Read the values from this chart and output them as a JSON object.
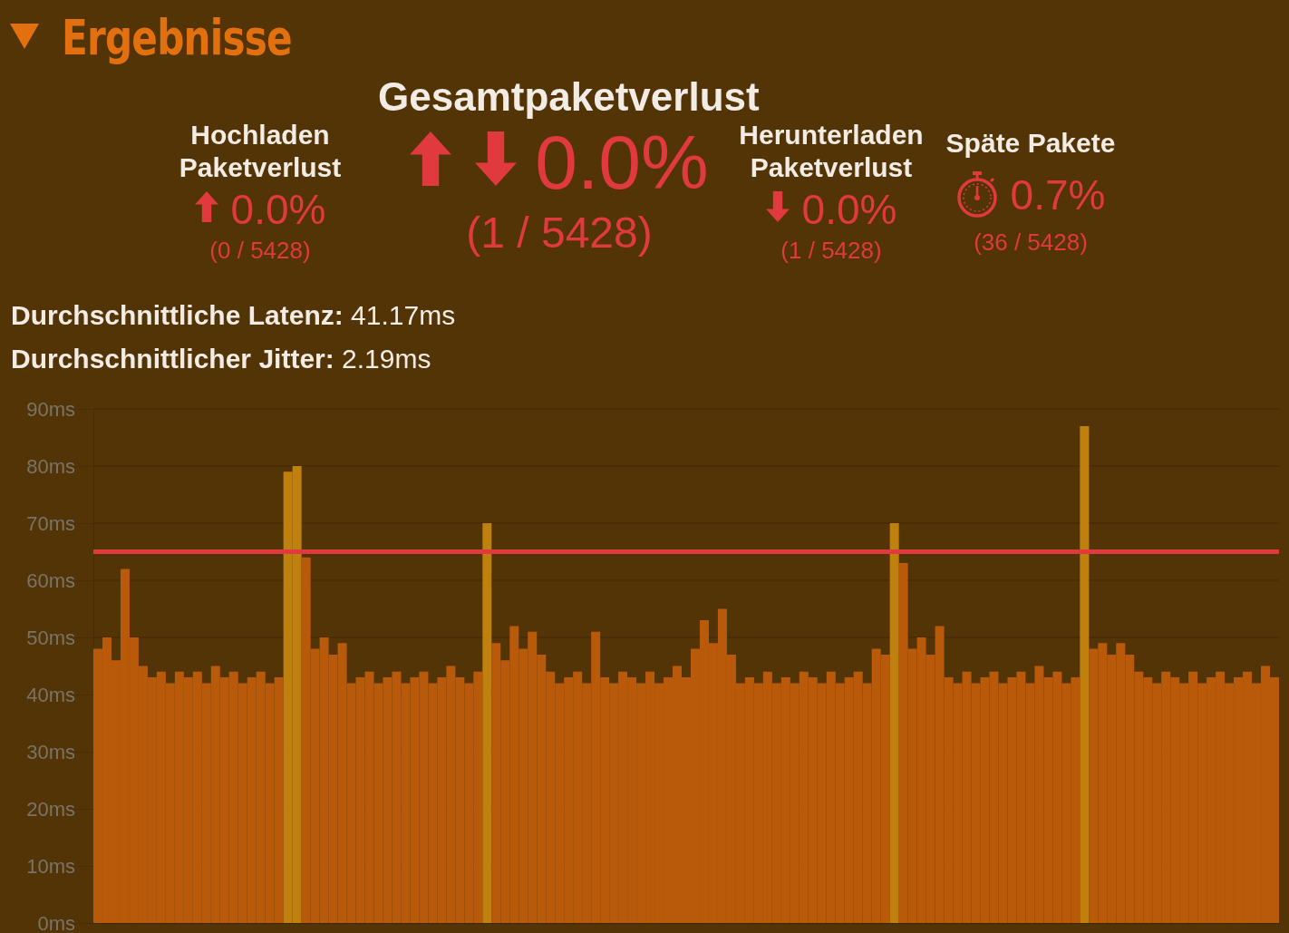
{
  "chart_data": {
    "type": "bar",
    "title": "Ergebnisse",
    "annotations": [
      "Hochladen Paketverlust",
      "0.0%",
      "(0 / 5428)",
      "Gesamtpaketverlust",
      "0.0%",
      "(1 / 5428)",
      "Herunterladen Paketverlust",
      "0.0%",
      "(1 / 5428)",
      "Späte Pakete",
      "0.7%",
      "(36 / 5428)",
      "Durchschnittliche Latenz:",
      "41.17ms",
      "Durchschnittlicher Jitter:",
      "2.19ms"
    ],
    "categories": [
      null,
      null,
      null,
      null,
      null,
      null,
      null,
      null,
      null,
      null,
      null,
      null,
      null,
      null,
      null,
      null,
      null,
      null,
      null,
      null,
      null,
      null,
      null,
      null,
      null,
      null,
      null,
      null,
      null,
      null,
      null,
      null,
      null,
      null,
      null,
      null,
      null,
      null,
      null,
      null,
      null,
      null,
      null,
      null,
      null,
      null,
      null,
      null,
      null,
      null,
      null,
      null,
      null,
      null,
      null,
      null,
      null,
      null,
      null,
      null,
      null,
      null,
      null,
      null,
      null,
      null,
      null,
      null,
      null,
      null,
      null,
      null,
      null,
      null,
      null,
      null,
      null,
      null,
      null,
      null,
      null,
      null,
      null,
      null,
      null,
      null,
      null,
      null,
      null,
      null,
      null,
      null,
      null,
      null,
      null,
      null,
      null,
      null,
      null,
      null,
      null,
      null,
      null,
      null,
      null,
      null,
      null,
      null,
      null,
      null,
      null,
      null,
      null,
      null,
      null,
      null,
      null,
      null,
      null,
      null,
      null,
      null,
      null,
      null,
      null,
      null,
      null,
      null,
      null,
      null,
      null
    ],
    "values": [
      48,
      50,
      46,
      62,
      50,
      45,
      43,
      44,
      42,
      44,
      43,
      44,
      42,
      45,
      43,
      44,
      42,
      43,
      44,
      42,
      43,
      79,
      80,
      64,
      48,
      50,
      47,
      49,
      42,
      43,
      44,
      42,
      43,
      44,
      42,
      43,
      44,
      42,
      43,
      45,
      43,
      42,
      44,
      70,
      49,
      46,
      52,
      48,
      51,
      47,
      44,
      42,
      43,
      44,
      42,
      51,
      43,
      42,
      44,
      43,
      42,
      44,
      42,
      43,
      45,
      43,
      48,
      53,
      49,
      55,
      47,
      42,
      43,
      42,
      44,
      42,
      43,
      42,
      44,
      43,
      42,
      44,
      42,
      43,
      44,
      42,
      48,
      47,
      70,
      63,
      48,
      50,
      47,
      52,
      43,
      42,
      44,
      42,
      43,
      44,
      42,
      43,
      44,
      42,
      45,
      43,
      44,
      42,
      43,
      87,
      48,
      49,
      47,
      49,
      47,
      44,
      43,
      42,
      44,
      43,
      42,
      44,
      42,
      43,
      44,
      42,
      43,
      44,
      42,
      45,
      43
    ],
    "colors": [
      "#b95a0b",
      "#b95a0b",
      "#b95a0b",
      "#b95a0b",
      "#b95a0b",
      "#b95a0b",
      "#b95a0b",
      "#b95a0b",
      "#b95a0b",
      "#b95a0b",
      "#b95a0b",
      "#b95a0b",
      "#b95a0b",
      "#b95a0b",
      "#b95a0b",
      "#b95a0b",
      "#b95a0b",
      "#b95a0b",
      "#b95a0b",
      "#b95a0b",
      "#b95a0b",
      "#c0800e",
      "#c0800e",
      "#b95a0b",
      "#b95a0b",
      "#b95a0b",
      "#b95a0b",
      "#b95a0b",
      "#b95a0b",
      "#b95a0b",
      "#b95a0b",
      "#b95a0b",
      "#b95a0b",
      "#b95a0b",
      "#b95a0b",
      "#b95a0b",
      "#b95a0b",
      "#b95a0b",
      "#b95a0b",
      "#b95a0b",
      "#b95a0b",
      "#b95a0b",
      "#b95a0b",
      "#c0800e",
      "#b95a0b",
      "#b95a0b",
      "#b95a0b",
      "#b95a0b",
      "#b95a0b",
      "#b95a0b",
      "#b95a0b",
      "#b95a0b",
      "#b95a0b",
      "#b95a0b",
      "#b95a0b",
      "#b95a0b",
      "#b95a0b",
      "#b95a0b",
      "#b95a0b",
      "#b95a0b",
      "#b95a0b",
      "#b95a0b",
      "#b95a0b",
      "#b95a0b",
      "#b95a0b",
      "#b95a0b",
      "#b95a0b",
      "#b95a0b",
      "#b95a0b",
      "#b95a0b",
      "#b95a0b",
      "#b95a0b",
      "#b95a0b",
      "#b95a0b",
      "#b95a0b",
      "#b95a0b",
      "#b95a0b",
      "#b95a0b",
      "#b95a0b",
      "#b95a0b",
      "#b95a0b",
      "#b95a0b",
      "#b95a0b",
      "#b95a0b",
      "#b95a0b",
      "#b95a0b",
      "#b95a0b",
      "#b95a0b",
      "#c0800e",
      "#b95a0b",
      "#b95a0b",
      "#b95a0b",
      "#b95a0b",
      "#b95a0b",
      "#b95a0b",
      "#b95a0b",
      "#b95a0b",
      "#b95a0b",
      "#b95a0b",
      "#b95a0b",
      "#b95a0b",
      "#b95a0b",
      "#b95a0b",
      "#b95a0b",
      "#b95a0b",
      "#b95a0b",
      "#b95a0b",
      "#b95a0b",
      "#b95a0b",
      "#c0800e",
      "#b95a0b",
      "#b95a0b",
      "#b95a0b",
      "#b95a0b",
      "#b95a0b",
      "#b95a0b",
      "#b95a0b",
      "#b95a0b",
      "#b95a0b",
      "#b95a0b",
      "#b95a0b",
      "#b95a0b",
      "#b95a0b",
      "#b95a0b",
      "#b95a0b",
      "#b95a0b",
      "#b95a0b",
      "#b95a0b",
      "#b95a0b",
      "#b95a0b",
      "#b95a0b"
    ],
    "ylim": [
      0,
      90
    ],
    "yticks": [
      {
        "value": 0,
        "label": "0ms"
      },
      {
        "value": 10,
        "label": "10ms"
      },
      {
        "value": 20,
        "label": "20ms"
      },
      {
        "value": 30,
        "label": "30ms"
      },
      {
        "value": 40,
        "label": "40ms"
      },
      {
        "value": 50,
        "label": "50ms"
      },
      {
        "value": 60,
        "label": "60ms"
      },
      {
        "value": 70,
        "label": "70ms"
      },
      {
        "value": 80,
        "label": "80ms"
      },
      {
        "value": 90,
        "label": "90ms"
      }
    ],
    "ref_lines": [
      {
        "axis": "y",
        "value": 65,
        "color": "#e0393e"
      }
    ],
    "grid": "y",
    "tick_labels": "y"
  }
}
